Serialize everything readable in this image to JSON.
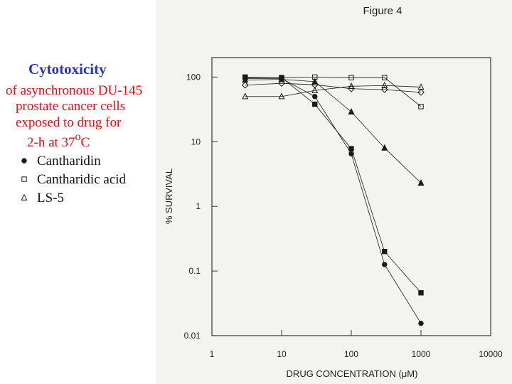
{
  "slide": {
    "title": "Cytotoxicity",
    "description_lines": [
      "of asynchronous DU-145",
      "prostate cancer cells",
      "exposed to drug for"
    ],
    "temperature_line": {
      "text": "2-h at 37",
      "sup": "o",
      "unit": "C"
    }
  },
  "chart_data": {
    "type": "line",
    "title": "Figure 4",
    "x_label": "DRUG CONCENTRATION (μM)",
    "y_label": "% SURVIVAL",
    "log_x": true,
    "log_y": true,
    "xlim": [
      1,
      10000
    ],
    "ylim": [
      0.01,
      200
    ],
    "xticks": [
      1,
      10,
      100,
      1000,
      10000
    ],
    "yticks": [
      100,
      10,
      1,
      0.1,
      0.01
    ],
    "x": [
      3,
      10,
      30,
      100,
      300,
      1000
    ],
    "series": [
      {
        "name": "Cantharidin",
        "marker": "circle-filled",
        "color": "#1a1a1a",
        "values": [
          95,
          95,
          50,
          6.5,
          0.126,
          0.0155
        ]
      },
      {
        "name": "Cantharidic acid",
        "marker": "square-open",
        "color": "#1a1a1a",
        "values": [
          100,
          98,
          100,
          98,
          98,
          35
        ]
      },
      {
        "name": "LS-5",
        "marker": "triangle-open",
        "color": "#1a1a1a",
        "values": [
          50,
          50,
          62,
          72,
          74,
          70
        ]
      },
      {
        "marker": "square-filled",
        "color": "#1a1a1a",
        "values": [
          98,
          98,
          38,
          7.8,
          0.2,
          0.046
        ]
      },
      {
        "marker": "triangle-filled",
        "color": "#1a1a1a",
        "values": [
          90,
          92,
          85,
          29,
          8,
          2.3
        ]
      },
      {
        "marker": "diamond-open",
        "color": "#1a1a1a",
        "values": [
          75,
          80,
          76,
          66,
          64,
          58
        ]
      }
    ]
  }
}
